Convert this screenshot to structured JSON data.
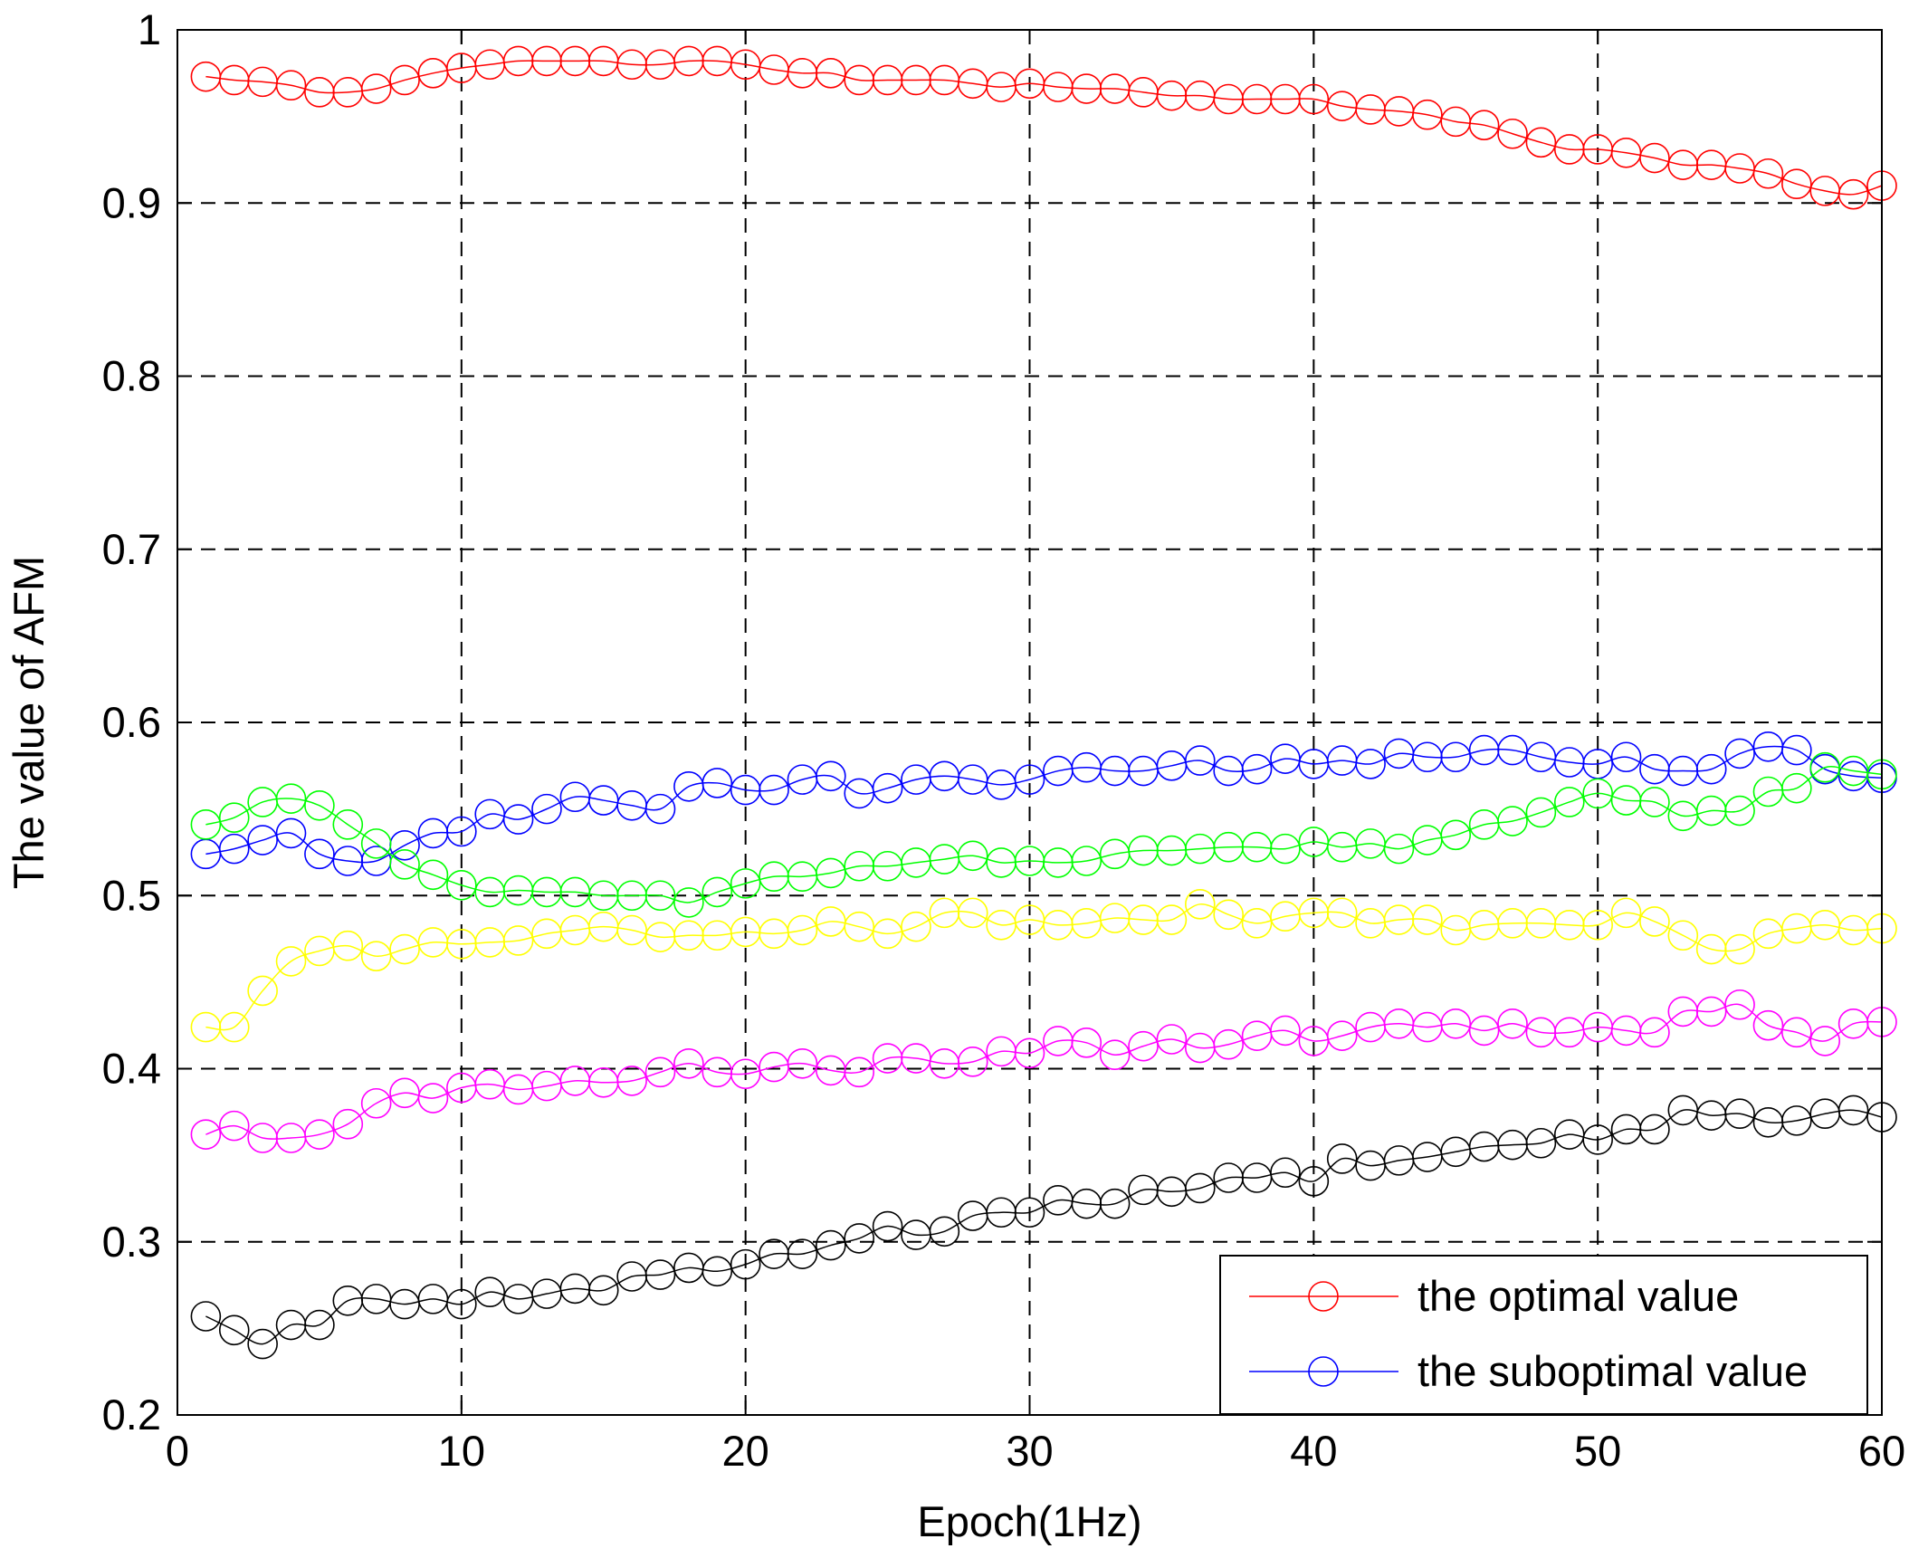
{
  "chart_data": {
    "type": "line",
    "title": "",
    "xlabel": "Epoch(1Hz)",
    "ylabel": "The value of AFM",
    "xlim": [
      0,
      60
    ],
    "ylim": [
      0.2,
      1.0
    ],
    "xticks": [
      0,
      10,
      20,
      30,
      40,
      50,
      60
    ],
    "yticks": [
      0.2,
      0.3,
      0.4,
      0.5,
      0.6,
      0.7,
      0.8,
      0.9,
      1.0
    ],
    "xtick_labels": [
      "0",
      "10",
      "20",
      "30",
      "40",
      "50",
      "60"
    ],
    "ytick_labels": [
      "0.2",
      "0.3",
      "0.4",
      "0.5",
      "0.6",
      "0.7",
      "0.8",
      "0.9",
      "1"
    ],
    "grid": true,
    "legend_position": "bottom-right",
    "x": [
      1,
      2,
      3,
      4,
      5,
      6,
      7,
      8,
      9,
      10,
      11,
      12,
      13,
      14,
      15,
      16,
      17,
      18,
      19,
      20,
      21,
      22,
      23,
      24,
      25,
      26,
      27,
      28,
      29,
      30,
      31,
      32,
      33,
      34,
      35,
      36,
      37,
      38,
      39,
      40,
      41,
      42,
      43,
      44,
      45,
      46,
      47,
      48,
      49,
      50,
      51,
      52,
      53,
      54,
      55,
      56,
      57,
      58,
      59,
      60
    ],
    "series": [
      {
        "name": "the optimal value",
        "color": "#ff0000",
        "in_legend": true,
        "values": [
          0.973,
          0.971,
          0.97,
          0.968,
          0.964,
          0.964,
          0.966,
          0.971,
          0.975,
          0.978,
          0.98,
          0.982,
          0.982,
          0.982,
          0.982,
          0.98,
          0.98,
          0.982,
          0.982,
          0.98,
          0.977,
          0.975,
          0.975,
          0.971,
          0.971,
          0.971,
          0.971,
          0.969,
          0.967,
          0.969,
          0.967,
          0.966,
          0.966,
          0.964,
          0.962,
          0.962,
          0.96,
          0.96,
          0.96,
          0.96,
          0.956,
          0.954,
          0.953,
          0.951,
          0.947,
          0.945,
          0.94,
          0.935,
          0.931,
          0.931,
          0.929,
          0.926,
          0.922,
          0.922,
          0.92,
          0.917,
          0.911,
          0.907,
          0.905,
          0.91
        ]
      },
      {
        "name": "the suboptimal value",
        "color": "#0000ff",
        "in_legend": true,
        "values": [
          0.524,
          0.527,
          0.532,
          0.536,
          0.524,
          0.52,
          0.52,
          0.529,
          0.536,
          0.537,
          0.547,
          0.544,
          0.55,
          0.557,
          0.555,
          0.552,
          0.55,
          0.563,
          0.565,
          0.561,
          0.561,
          0.567,
          0.569,
          0.559,
          0.562,
          0.567,
          0.569,
          0.567,
          0.564,
          0.567,
          0.572,
          0.574,
          0.572,
          0.572,
          0.575,
          0.578,
          0.572,
          0.573,
          0.579,
          0.576,
          0.578,
          0.576,
          0.582,
          0.58,
          0.58,
          0.584,
          0.584,
          0.58,
          0.577,
          0.576,
          0.58,
          0.573,
          0.572,
          0.573,
          0.582,
          0.586,
          0.584,
          0.573,
          0.569,
          0.568
        ]
      },
      {
        "name": "",
        "color": "#00ff00",
        "in_legend": false,
        "values": [
          0.541,
          0.545,
          0.554,
          0.556,
          0.552,
          0.541,
          0.53,
          0.518,
          0.512,
          0.506,
          0.502,
          0.503,
          0.502,
          0.502,
          0.5,
          0.5,
          0.5,
          0.496,
          0.502,
          0.507,
          0.511,
          0.511,
          0.513,
          0.517,
          0.517,
          0.519,
          0.521,
          0.523,
          0.519,
          0.52,
          0.519,
          0.52,
          0.524,
          0.526,
          0.526,
          0.527,
          0.528,
          0.528,
          0.527,
          0.531,
          0.528,
          0.53,
          0.527,
          0.532,
          0.535,
          0.541,
          0.543,
          0.548,
          0.554,
          0.559,
          0.555,
          0.554,
          0.546,
          0.549,
          0.549,
          0.56,
          0.562,
          0.574,
          0.572,
          0.57
        ]
      },
      {
        "name": "",
        "color": "#ffff00",
        "in_legend": false,
        "values": [
          0.424,
          0.424,
          0.445,
          0.462,
          0.468,
          0.471,
          0.465,
          0.469,
          0.473,
          0.472,
          0.473,
          0.474,
          0.478,
          0.48,
          0.482,
          0.48,
          0.476,
          0.477,
          0.477,
          0.479,
          0.478,
          0.48,
          0.485,
          0.482,
          0.478,
          0.482,
          0.49,
          0.49,
          0.483,
          0.486,
          0.483,
          0.484,
          0.487,
          0.486,
          0.486,
          0.495,
          0.489,
          0.484,
          0.488,
          0.49,
          0.49,
          0.484,
          0.486,
          0.486,
          0.48,
          0.483,
          0.484,
          0.484,
          0.483,
          0.483,
          0.49,
          0.485,
          0.477,
          0.469,
          0.469,
          0.478,
          0.481,
          0.483,
          0.48,
          0.481
        ]
      },
      {
        "name": "",
        "color": "#ff00ff",
        "in_legend": false,
        "values": [
          0.362,
          0.367,
          0.36,
          0.36,
          0.362,
          0.368,
          0.38,
          0.386,
          0.383,
          0.389,
          0.391,
          0.388,
          0.39,
          0.393,
          0.392,
          0.393,
          0.398,
          0.403,
          0.398,
          0.397,
          0.401,
          0.403,
          0.399,
          0.398,
          0.406,
          0.406,
          0.403,
          0.404,
          0.41,
          0.409,
          0.416,
          0.415,
          0.408,
          0.413,
          0.417,
          0.412,
          0.414,
          0.419,
          0.422,
          0.416,
          0.419,
          0.424,
          0.426,
          0.424,
          0.426,
          0.422,
          0.426,
          0.421,
          0.421,
          0.424,
          0.422,
          0.421,
          0.433,
          0.433,
          0.437,
          0.425,
          0.421,
          0.416,
          0.426,
          0.427
        ]
      },
      {
        "name": "",
        "color": "#000000",
        "in_legend": false,
        "values": [
          0.257,
          0.249,
          0.241,
          0.252,
          0.252,
          0.266,
          0.267,
          0.264,
          0.267,
          0.264,
          0.271,
          0.267,
          0.27,
          0.273,
          0.272,
          0.28,
          0.281,
          0.285,
          0.283,
          0.287,
          0.293,
          0.293,
          0.298,
          0.302,
          0.309,
          0.304,
          0.306,
          0.315,
          0.317,
          0.317,
          0.324,
          0.322,
          0.322,
          0.33,
          0.329,
          0.331,
          0.337,
          0.337,
          0.34,
          0.335,
          0.348,
          0.344,
          0.347,
          0.349,
          0.352,
          0.355,
          0.356,
          0.357,
          0.362,
          0.359,
          0.365,
          0.365,
          0.376,
          0.373,
          0.374,
          0.369,
          0.37,
          0.374,
          0.376,
          0.372
        ]
      }
    ]
  }
}
